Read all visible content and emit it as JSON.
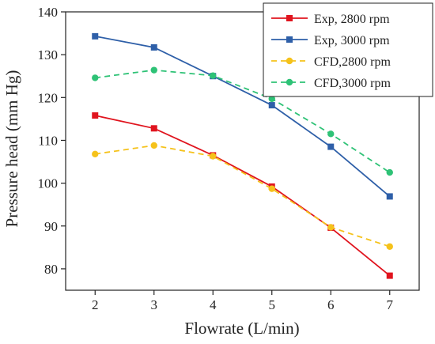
{
  "chart_data": {
    "type": "line",
    "title": "",
    "xlabel": "Flowrate (L/min)",
    "ylabel": "Pressure head (mm Hg)",
    "xlim": [
      1.5,
      7.5
    ],
    "ylim": [
      75,
      140
    ],
    "xticks": [
      2,
      3,
      4,
      5,
      6,
      7
    ],
    "yticks": [
      80,
      90,
      100,
      110,
      120,
      130,
      140
    ],
    "grid": false,
    "legend_position": "top-right",
    "x": [
      2,
      3,
      4,
      5,
      6,
      7
    ],
    "series": [
      {
        "name": "Exp, 2800 rpm",
        "values": [
          115.8,
          112.8,
          106.5,
          99.2,
          89.6,
          78.4
        ],
        "color": "#e0141e",
        "dashed": false,
        "marker": "square"
      },
      {
        "name": "Exp, 3000 rpm",
        "values": [
          134.3,
          131.7,
          125.0,
          118.2,
          108.5,
          96.9
        ],
        "color": "#2e5fa8",
        "dashed": false,
        "marker": "square"
      },
      {
        "name": "CFD,2800 rpm",
        "values": [
          106.8,
          108.8,
          106.3,
          98.7,
          89.7,
          85.2
        ],
        "color": "#f5c21b",
        "dashed": true,
        "marker": "circle"
      },
      {
        "name": "CFD,3000 rpm",
        "values": [
          124.6,
          126.4,
          125.1,
          119.7,
          111.5,
          102.5
        ],
        "color": "#2ec276",
        "dashed": true,
        "marker": "circle"
      }
    ]
  }
}
